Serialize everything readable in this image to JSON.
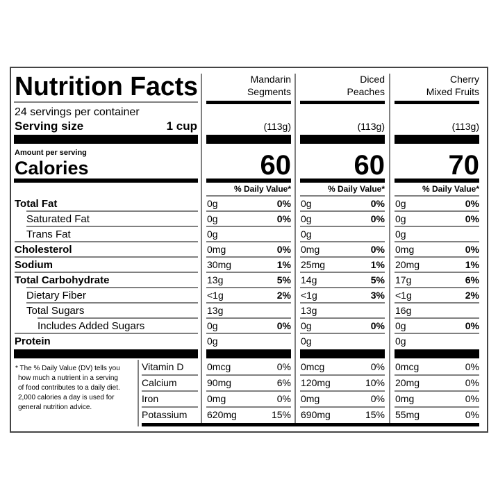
{
  "title": "Nutrition Facts",
  "servings": "24 servings per container",
  "serving_size_label": "Serving size",
  "serving_size": "1 cup",
  "amount_per_serving": "Amount per serving",
  "calories_label": "Calories",
  "dv_header": "% Daily Value*",
  "products": [
    {
      "name_lines": [
        "Mandarin",
        "Segments"
      ],
      "weight": "(113g)",
      "calories": "60"
    },
    {
      "name_lines": [
        "Diced",
        "Peaches"
      ],
      "weight": "(113g)",
      "calories": "60"
    },
    {
      "name_lines": [
        "Cherry",
        "Mixed Fruits"
      ],
      "weight": "(113g)",
      "calories": "70"
    }
  ],
  "nutrients": [
    {
      "label": "Total Fat",
      "values": [
        {
          "amount": "0g",
          "dv": "0%"
        },
        {
          "amount": "0g",
          "dv": "0%"
        },
        {
          "amount": "0g",
          "dv": "0%"
        }
      ]
    },
    {
      "label": "Saturated Fat",
      "values": [
        {
          "amount": "0g",
          "dv": "0%"
        },
        {
          "amount": "0g",
          "dv": "0%"
        },
        {
          "amount": "0g",
          "dv": "0%"
        }
      ]
    },
    {
      "label": "Trans Fat",
      "values": [
        {
          "amount": "0g"
        },
        {
          "amount": "0g"
        },
        {
          "amount": "0g"
        }
      ]
    },
    {
      "label": "Cholesterol",
      "values": [
        {
          "amount": "0mg",
          "dv": "0%"
        },
        {
          "amount": "0mg",
          "dv": "0%"
        },
        {
          "amount": "0mg",
          "dv": "0%"
        }
      ]
    },
    {
      "label": "Sodium",
      "values": [
        {
          "amount": "30mg",
          "dv": "1%"
        },
        {
          "amount": "25mg",
          "dv": "1%"
        },
        {
          "amount": "20mg",
          "dv": "1%"
        }
      ]
    },
    {
      "label": "Total Carbohydrate",
      "values": [
        {
          "amount": "13g",
          "dv": "5%"
        },
        {
          "amount": "14g",
          "dv": "5%"
        },
        {
          "amount": "17g",
          "dv": "6%"
        }
      ]
    },
    {
      "label": "Dietary Fiber",
      "values": [
        {
          "amount": "<1g",
          "dv": "2%"
        },
        {
          "amount": "<1g",
          "dv": "3%"
        },
        {
          "amount": "<1g",
          "dv": "2%"
        }
      ]
    },
    {
      "label": "Total Sugars",
      "values": [
        {
          "amount": "13g"
        },
        {
          "amount": "13g"
        },
        {
          "amount": "16g"
        }
      ]
    },
    {
      "label": "Includes Added Sugars",
      "values": [
        {
          "amount": "0g",
          "dv": "0%"
        },
        {
          "amount": "0g",
          "dv": "0%"
        },
        {
          "amount": "0g",
          "dv": "0%"
        }
      ]
    },
    {
      "label": "Protein",
      "values": [
        {
          "amount": "0g"
        },
        {
          "amount": "0g"
        },
        {
          "amount": "0g"
        }
      ]
    }
  ],
  "footnote_lines": [
    "* The % Daily Value (DV) tells you",
    "how much a nutrient in a serving",
    "of food contributes to a daily diet.",
    "2,000 calories a day is used for",
    "general nutrition advice."
  ],
  "vitamins": [
    {
      "label": "Vitamin D",
      "values": [
        {
          "amount": "0mcg",
          "dv": "0%"
        },
        {
          "amount": "0mcg",
          "dv": "0%"
        },
        {
          "amount": "0mcg",
          "dv": "0%"
        }
      ]
    },
    {
      "label": "Calcium",
      "values": [
        {
          "amount": "90mg",
          "dv": "6%"
        },
        {
          "amount": "120mg",
          "dv": "10%"
        },
        {
          "amount": "20mg",
          "dv": "0%"
        }
      ]
    },
    {
      "label": "Iron",
      "values": [
        {
          "amount": "0mg",
          "dv": "0%"
        },
        {
          "amount": "0mg",
          "dv": "0%"
        },
        {
          "amount": "0mg",
          "dv": "0%"
        }
      ]
    },
    {
      "label": "Potassium",
      "values": [
        {
          "amount": "620mg",
          "dv": "15%"
        },
        {
          "amount": "690mg",
          "dv": "15%"
        },
        {
          "amount": "55mg",
          "dv": "0%"
        }
      ]
    }
  ]
}
